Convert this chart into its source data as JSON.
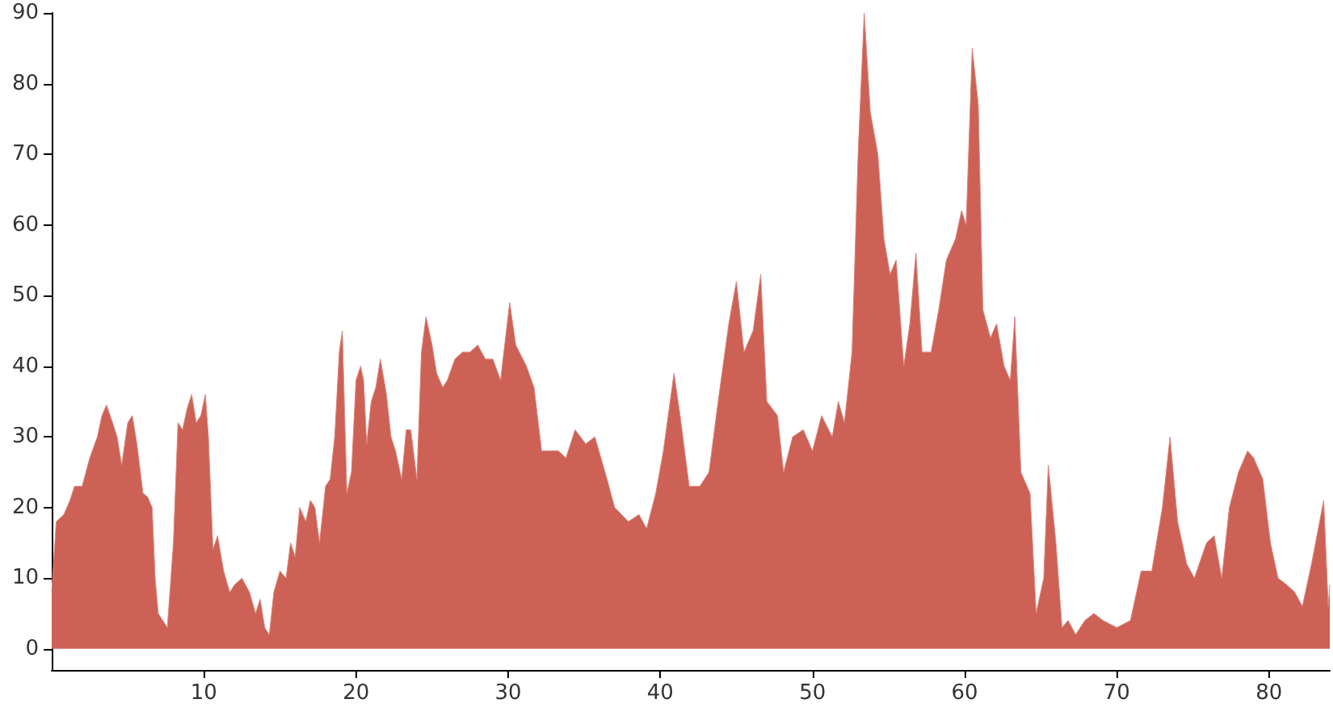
{
  "chart_data": {
    "type": "area",
    "color": "#cd6155",
    "marker": "none",
    "grid": false,
    "x": [
      0,
      0.3,
      0.8,
      1.2,
      1.5,
      2,
      2.5,
      3,
      3.3,
      3.6,
      4,
      4.3,
      4.6,
      5,
      5.3,
      5.6,
      6,
      6.3,
      6.6,
      6.8,
      7,
      7.3,
      7.6,
      8,
      8.3,
      8.6,
      8.9,
      9.2,
      9.5,
      9.8,
      10.1,
      10.3,
      10.6,
      10.9,
      11.3,
      11.7,
      12,
      12.5,
      13,
      13.4,
      13.7,
      14,
      14.3,
      14.6,
      15,
      15.4,
      15.7,
      16,
      16.3,
      16.7,
      17,
      17.3,
      17.6,
      18,
      18.3,
      18.6,
      18.9,
      19.1,
      19.4,
      19.7,
      20,
      20.3,
      20.5,
      20.7,
      21,
      21.3,
      21.6,
      22,
      22.3,
      22.6,
      23,
      23.3,
      23.6,
      24,
      24.3,
      24.6,
      25,
      25.3,
      25.7,
      26,
      26.5,
      27,
      27.5,
      28,
      28.5,
      29,
      29.5,
      30.1,
      30.5,
      31.2,
      31.7,
      32.2,
      33.3,
      33.8,
      34.4,
      35.1,
      35.7,
      36.5,
      37,
      37.9,
      38.6,
      39.1,
      39.7,
      40.2,
      40.9,
      41.3,
      41.9,
      42.6,
      43.2,
      43.8,
      44.5,
      45,
      45.5,
      46.1,
      46.6,
      47,
      47.7,
      48.1,
      48.7,
      49.4,
      50,
      50.6,
      51.3,
      51.7,
      52.1,
      52.6,
      53,
      53.4,
      53.8,
      54.3,
      54.7,
      55.1,
      55.5,
      56,
      56.4,
      56.8,
      57.2,
      57.8,
      58.3,
      58.8,
      59.4,
      59.8,
      60.1,
      60.5,
      60.9,
      61.2,
      61.7,
      62.1,
      62.6,
      63,
      63.3,
      63.7,
      64.3,
      64.7,
      65.2,
      65.5,
      66,
      66.4,
      66.8,
      67.3,
      67.9,
      68.5,
      69.1,
      70,
      70.9,
      71.6,
      72.3,
      73,
      73.5,
      74,
      74.6,
      75.1,
      75.9,
      76.4,
      76.9,
      77.4,
      78,
      78.6,
      79,
      79.6,
      80.1,
      80.6,
      81.2,
      81.7,
      82.2,
      82.8,
      83.6,
      83.9,
      84
    ],
    "values": [
      8,
      18,
      19,
      21,
      23,
      23,
      27,
      30,
      33,
      34.5,
      32,
      30,
      26,
      32,
      33,
      29,
      22,
      21.5,
      20,
      10,
      5,
      4,
      3,
      15,
      32,
      31,
      34,
      36,
      32,
      33,
      36,
      30,
      14,
      16,
      11,
      8,
      9,
      10,
      8,
      5,
      7,
      3,
      2,
      8,
      11,
      10,
      15,
      13,
      20,
      18,
      21,
      20,
      15,
      23,
      24,
      30,
      42,
      45,
      22,
      25,
      38,
      40,
      38,
      29,
      35,
      37,
      41,
      36,
      30,
      28,
      24,
      31,
      31,
      24,
      42,
      47,
      43,
      39,
      37,
      38,
      41,
      42,
      42,
      43,
      41,
      41,
      38,
      49,
      43,
      40,
      37,
      28,
      28,
      27,
      31,
      29,
      30,
      24,
      20,
      18,
      19,
      17,
      22,
      28,
      39,
      33,
      23,
      23,
      25,
      35,
      46,
      52,
      42,
      45,
      53,
      35,
      33,
      25,
      30,
      31,
      28,
      33,
      30,
      35,
      32,
      42,
      70,
      90,
      76,
      70,
      58,
      53,
      55,
      40,
      46,
      56,
      42,
      42,
      48,
      55,
      58,
      62,
      60,
      85,
      77,
      48,
      44,
      46,
      40,
      38,
      47,
      25,
      22,
      5,
      10,
      26,
      15,
      3,
      4,
      2,
      4,
      5,
      4,
      3,
      4,
      11,
      11,
      20,
      30,
      18,
      12,
      10,
      15,
      16,
      10,
      20,
      25,
      28,
      27,
      24,
      15,
      10,
      9,
      8,
      6,
      12,
      21,
      6,
      9
    ],
    "xlim": [
      0,
      84
    ],
    "xticks": [
      10,
      20,
      30,
      40,
      50,
      60,
      70,
      80
    ],
    "ylim": [
      -3,
      90
    ],
    "yticks": [
      0,
      10,
      20,
      30,
      40,
      50,
      60,
      70,
      80,
      90
    ]
  }
}
